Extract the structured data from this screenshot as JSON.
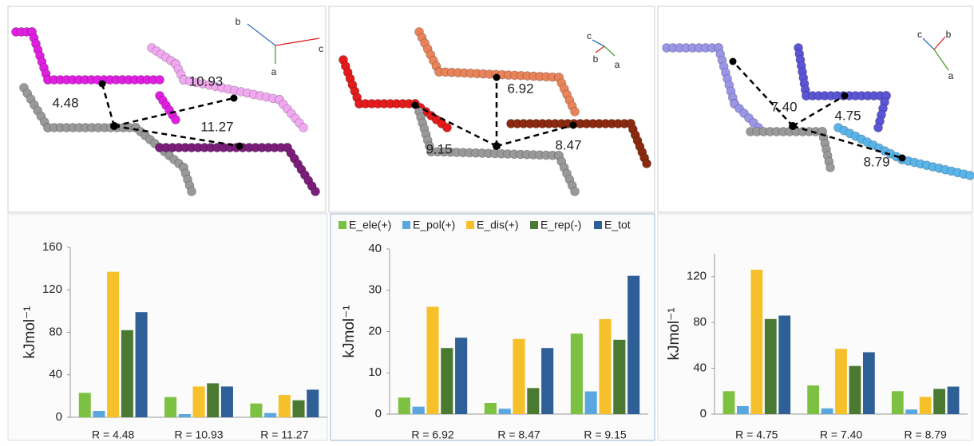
{
  "chart_data": [
    {
      "type": "bar",
      "y_label": "kJmol⁻¹",
      "categories": [
        "R = 4.48",
        "R = 10.93",
        "R = 11.27"
      ],
      "series": [
        {
          "color": "#7cc142",
          "values": [
            23,
            19,
            13
          ]
        },
        {
          "color": "#5aa7e0",
          "values": [
            6,
            3,
            4
          ]
        },
        {
          "color": "#f6c02a",
          "values": [
            137,
            29,
            21
          ]
        },
        {
          "color": "#4a7a32",
          "values": [
            82,
            32,
            16
          ]
        },
        {
          "color": "#2e5f96",
          "values": [
            99,
            29,
            26
          ]
        }
      ],
      "ylim": [
        0,
        160
      ],
      "yticks": [
        0,
        40,
        80,
        120,
        160
      ]
    },
    {
      "type": "bar",
      "y_label": "kJmol⁻¹",
      "categories": [
        "R = 6.92",
        "R = 8.47",
        "R = 9.15"
      ],
      "series": [
        {
          "name": "E_ele(+)",
          "color": "#7cc142",
          "values": [
            4,
            2.7,
            19.5
          ]
        },
        {
          "name": "E_pol(+)",
          "color": "#5aa7e0",
          "values": [
            1.8,
            1.3,
            5.5
          ]
        },
        {
          "name": "E_dis(+)",
          "color": "#f6c02a",
          "values": [
            26,
            18.2,
            23
          ]
        },
        {
          "name": "E_rep(-)",
          "color": "#4a7a32",
          "values": [
            16,
            6.3,
            18
          ]
        },
        {
          "name": "E_tot",
          "color": "#2e5f96",
          "values": [
            18.5,
            16,
            33.5
          ]
        }
      ],
      "ylim": [
        0,
        40
      ],
      "yticks": [
        0,
        10,
        20,
        30,
        40
      ],
      "legend": "top"
    },
    {
      "type": "bar",
      "y_label": "kJmol⁻¹",
      "categories": [
        "R = 4.75",
        "R = 7.40",
        "R = 8.79"
      ],
      "series": [
        {
          "color": "#7cc142",
          "values": [
            20,
            25,
            20
          ]
        },
        {
          "color": "#5aa7e0",
          "values": [
            7,
            5,
            4
          ]
        },
        {
          "color": "#f6c02a",
          "values": [
            126,
            57,
            15
          ]
        },
        {
          "color": "#4a7a32",
          "values": [
            83,
            42,
            22
          ]
        },
        {
          "color": "#2e5f96",
          "values": [
            86,
            54,
            24
          ]
        }
      ],
      "ylim": [
        0,
        140
      ],
      "yticks": [
        0,
        40,
        80,
        120
      ]
    }
  ],
  "structures": [
    {
      "distances": [
        "4.48",
        "10.93",
        "11.27"
      ],
      "axes": [
        "b",
        "c",
        "a"
      ]
    },
    {
      "distances": [
        "6.92",
        "9.15",
        "8.47"
      ],
      "axes": [
        "c",
        "b",
        "a"
      ]
    },
    {
      "distances": [
        "7.40",
        "4.75",
        "8.79"
      ],
      "axes": [
        "c",
        "b",
        "a"
      ]
    }
  ]
}
